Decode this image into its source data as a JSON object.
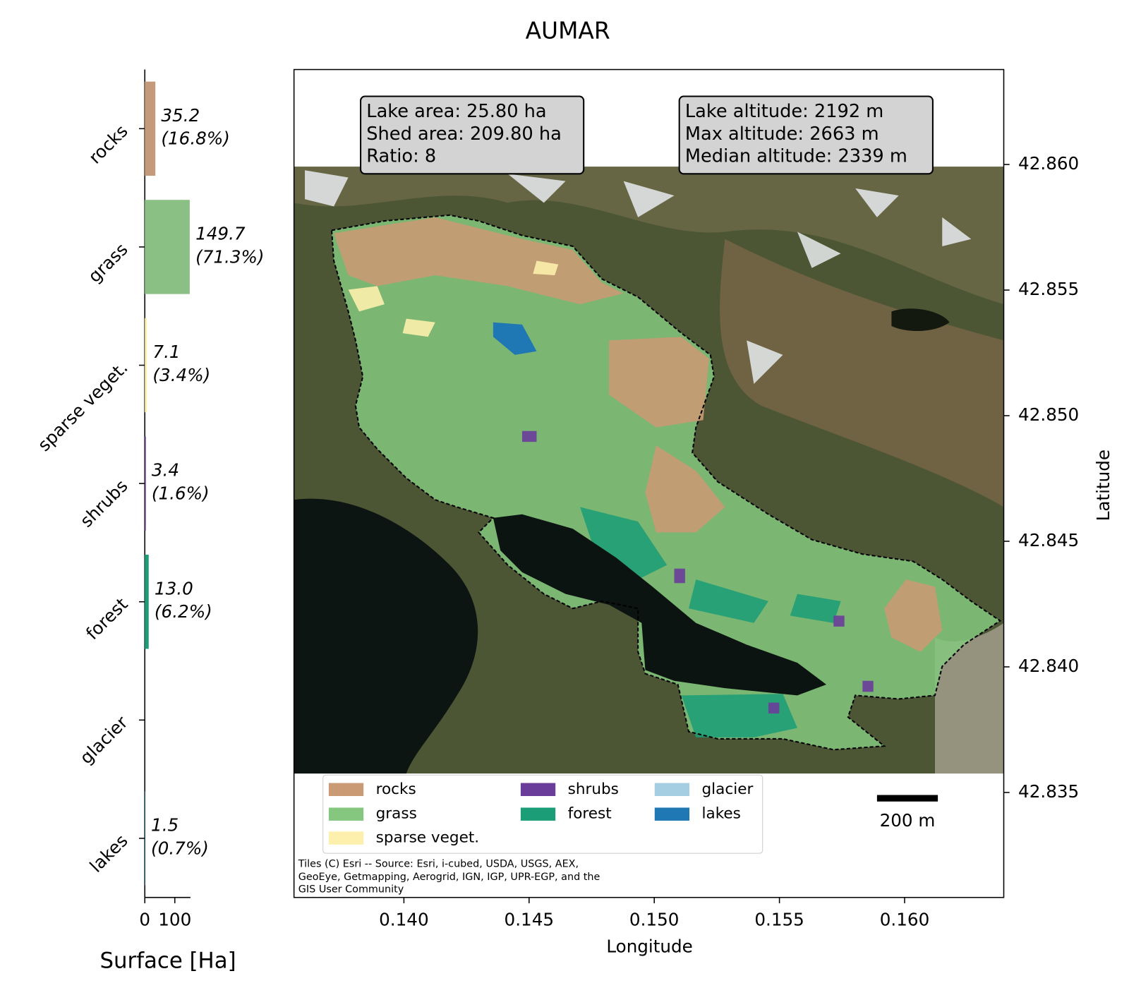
{
  "title": "AUMAR",
  "chart_data": [
    {
      "type": "bar",
      "orientation": "horizontal",
      "categories": [
        "rocks",
        "grass",
        "sparse veget.",
        "shrubs",
        "forest",
        "glacier",
        "lakes"
      ],
      "values": [
        35.2,
        149.7,
        7.1,
        3.4,
        13.0,
        0,
        1.5
      ],
      "value_labels": [
        "35.2",
        "149.7",
        "7.1",
        "3.4",
        "13.0",
        null,
        "1.5"
      ],
      "share_labels": [
        "(16.8%)",
        "(71.3%)",
        "(3.4%)",
        "(1.6%)",
        "(6.2%)",
        null,
        "(0.7%)"
      ],
      "colors": [
        "#c59a7a",
        "#8bc084",
        "#fdf0ad",
        "#6a3d9a",
        "#1b9e77",
        "#a6cee3",
        "#1f78b4"
      ],
      "xlim": [
        0,
        152
      ],
      "xticks": [
        0,
        100
      ],
      "xlabel": "Surface [Ha]"
    },
    {
      "type": "map",
      "xlim": [
        0.13561,
        0.16396
      ],
      "ylim": [
        42.83082,
        42.86378
      ],
      "xticks": [
        {
          "value": 0.14,
          "label": "0.140"
        },
        0.145,
        {
          "value": 0.15,
          "label": "0.150"
        },
        0.155,
        {
          "value": 0.16,
          "label": "0.160"
        }
      ],
      "yticks": [
        42.835,
        {
          "value": 42.84,
          "label": "42.840"
        },
        42.845,
        {
          "value": 42.85,
          "label": "42.850"
        },
        42.855,
        {
          "value": 42.86,
          "label": "42.860"
        }
      ],
      "xlabel": "Longitude",
      "ylabel": "Latitude",
      "annotations": [
        [
          "Lake area: 25.80 ha",
          "Shed area: 209.80 ha",
          "Ratio: 8"
        ],
        [
          "Lake altitude: 2192 m",
          "Max altitude: 2663 m",
          "Median altitude: 2339 m"
        ]
      ],
      "legend": [
        {
          "name": "rocks",
          "color": "#c99a74"
        },
        {
          "name": "grass",
          "color": "#85c77f"
        },
        {
          "name": "sparse veget.",
          "color": "#fdf0ad"
        },
        {
          "name": "shrubs",
          "color": "#6a3d9a"
        },
        {
          "name": "forest",
          "color": "#1b9e77"
        },
        {
          "name": "glacier",
          "color": "#a6cee3"
        },
        {
          "name": "lakes",
          "color": "#1f78b4"
        }
      ],
      "scale_bar": "200 m",
      "attribution": [
        "Tiles (C) Esri -- Source: Esri, i-cubed, USDA, USGS, AEX,",
        "GeoEye, Getmapping, Aerogrid, IGN, IGP, UPR-EGP, and the",
        "GIS User Community"
      ]
    }
  ]
}
